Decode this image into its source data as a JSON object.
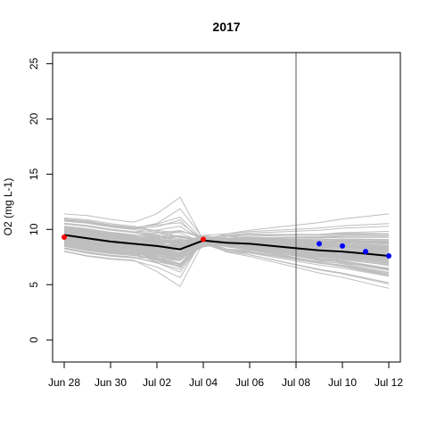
{
  "chart_data": {
    "type": "line",
    "title": "2017",
    "xlabel": "",
    "ylabel": "O2 (mg L-1)",
    "x_ticks": [
      "Jun 28",
      "Jun 30",
      "Jul 02",
      "Jul 04",
      "Jul 06",
      "Jul 08",
      "Jul 10",
      "Jul 12"
    ],
    "y_ticks": [
      "0",
      "5",
      "10",
      "15",
      "20",
      "25"
    ],
    "xlim": [
      "2017-06-27 12:00",
      "2017-07-12 12:00"
    ],
    "ylim": [
      -2,
      26
    ],
    "forecast_start": "2017-07-08",
    "colors": {
      "ensemble": "#bebebe",
      "mean": "#000000",
      "observed_assimilated": "#ff0000",
      "observed_validation": "#0000ff",
      "forecast_line": "#555555"
    },
    "ensemble_members": 100,
    "series": [
      {
        "x": [
          "2017-06-28",
          "2017-06-29",
          "2017-06-30",
          "2017-07-01",
          "2017-07-02",
          "2017-07-03",
          "2017-07-04",
          "2017-07-05",
          "2017-07-06",
          "2017-07-07",
          "2017-07-08",
          "2017-07-09",
          "2017-07-10",
          "2017-07-11",
          "2017-07-12"
        ],
        "values": [
          9.5,
          9.2,
          8.9,
          8.7,
          8.5,
          8.2,
          9.0,
          8.8,
          8.7,
          8.5,
          8.3,
          8.1,
          8.0,
          7.8,
          7.6
        ]
      },
      {
        "x": [
          "2017-06-28",
          "2017-07-04"
        ],
        "values": [
          9.3,
          9.1
        ]
      },
      {
        "x": [
          "2017-07-09",
          "2017-07-10",
          "2017-07-11",
          "2017-07-12"
        ],
        "values": [
          8.7,
          8.5,
          8.0,
          7.6
        ]
      }
    ]
  }
}
